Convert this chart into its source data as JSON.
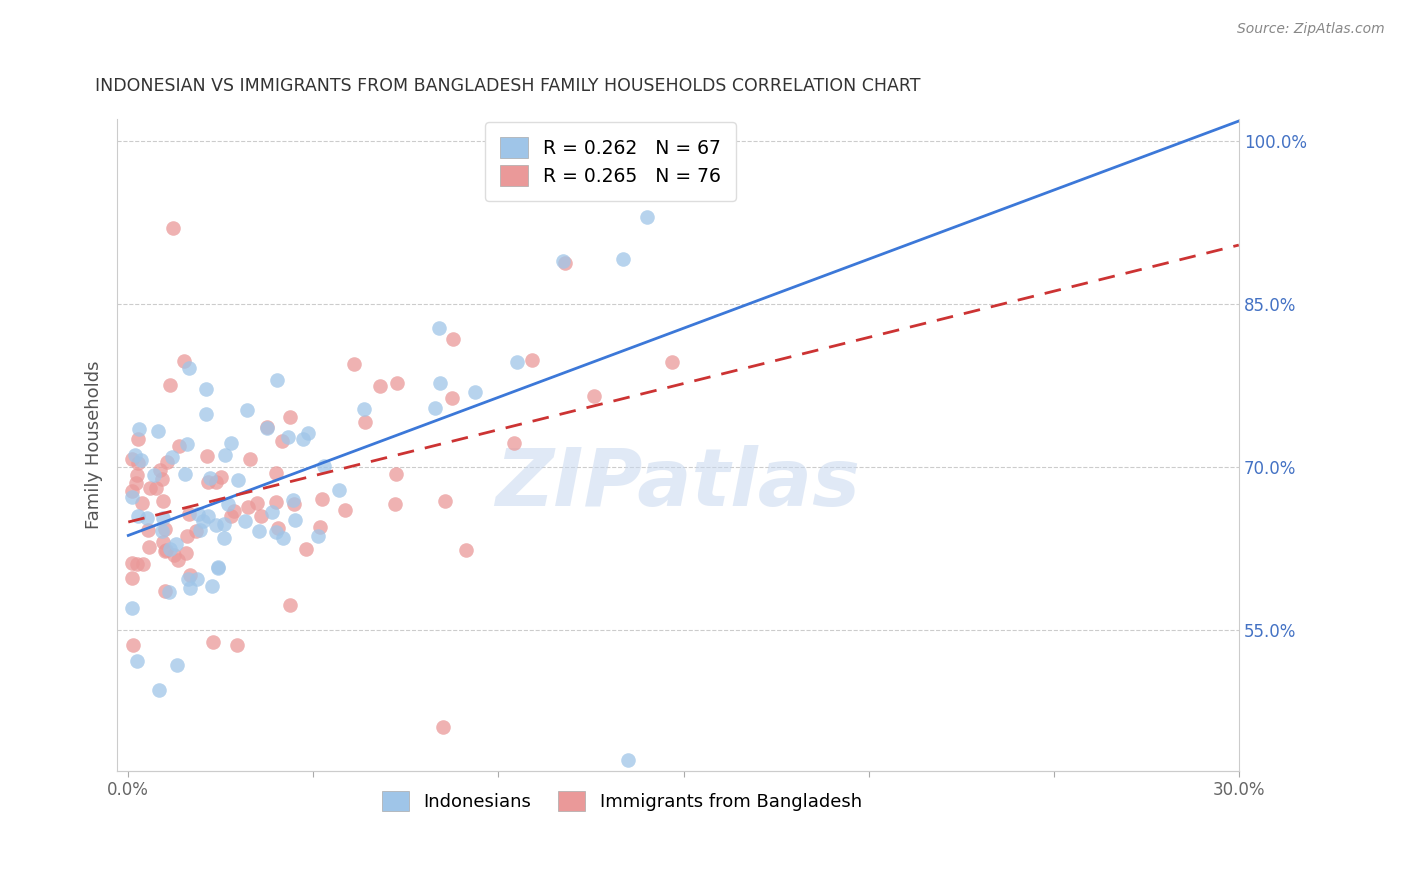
{
  "title": "INDONESIAN VS IMMIGRANTS FROM BANGLADESH FAMILY HOUSEHOLDS CORRELATION CHART",
  "source": "Source: ZipAtlas.com",
  "ylabel": "Family Households",
  "watermark": "ZIPatlas",
  "xlim_min": -0.003,
  "xlim_max": 0.3,
  "ylim_min": 0.42,
  "ylim_max": 1.02,
  "xtick_positions": [
    0.0,
    0.05,
    0.1,
    0.15,
    0.2,
    0.25,
    0.3
  ],
  "xticklabels": [
    "0.0%",
    "",
    "",
    "",
    "",
    "",
    "30.0%"
  ],
  "right_ytick_positions": [
    0.55,
    0.7,
    0.85,
    1.0
  ],
  "right_yticklabels": [
    "55.0%",
    "70.0%",
    "85.0%",
    "100.0%"
  ],
  "blue_scatter_color": "#9fc5e8",
  "pink_scatter_color": "#ea9999",
  "blue_line_color": "#3c78d8",
  "pink_line_color": "#cc3333",
  "right_axis_color": "#4472c4",
  "title_color": "#333333",
  "source_color": "#888888",
  "watermark_color": "#c8d8ef",
  "grid_color": "#cccccc",
  "legend_R1": "0.262",
  "legend_N1": "67",
  "legend_R2": "0.265",
  "legend_N2": "76"
}
